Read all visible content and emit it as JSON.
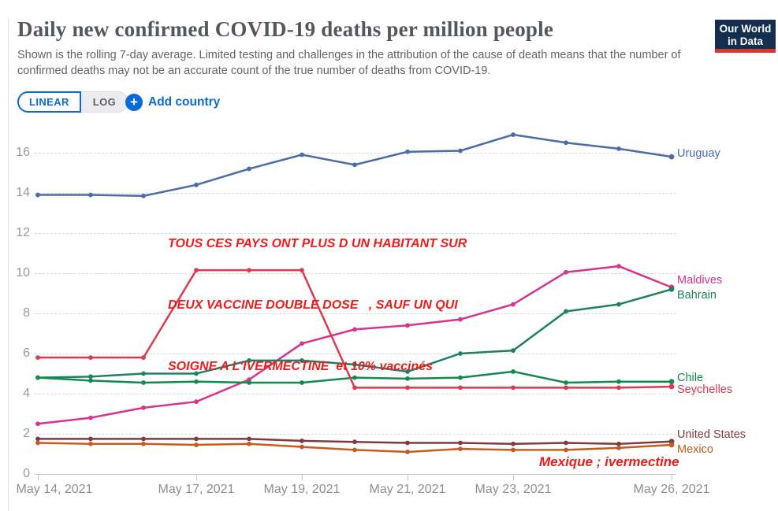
{
  "header": {
    "title": "Daily new confirmed COVID-19 deaths per million people",
    "subtitle": "Shown is the rolling 7-day average. Limited testing and challenges in the attribution of the cause of death means that the number of confirmed deaths may not be an accurate count of the true number of deaths from COVID-19.",
    "logo_line1": "Our World",
    "logo_line2": "in Data",
    "logo_bg": "#132e4f",
    "logo_bar": "#d8352e"
  },
  "controls": {
    "linear_label": "LINEAR",
    "log_label": "LOG",
    "plus_icon": "+",
    "add_country_label": "Add country",
    "accent_blue": "#0b6ad8"
  },
  "annotations": {
    "color": "#ef1c1c",
    "line1": "TOUS CES PAYS ONT PLUS D UN HABITANT SUR",
    "line2": "DEUX VACCINE DOUBLE DOSE   , SAUF UN QUI",
    "line3": "SOIGNE A L'IVERMECTINE  et 10% vaccinés",
    "mexico_note": "Mexique ; ivermectine"
  },
  "chart_data": {
    "type": "line",
    "title": "Daily new confirmed COVID-19 deaths per million people",
    "ylabel": "",
    "xlabel": "",
    "ylim": [
      0,
      17.4
    ],
    "yticks": [
      0,
      2,
      4,
      6,
      8,
      10,
      12,
      14,
      16
    ],
    "grid": "horizontal-dashed",
    "legend_position": "right-of-last-point",
    "x": [
      "May 14, 2021",
      "May 15, 2021",
      "May 16, 2021",
      "May 17, 2021",
      "May 18, 2021",
      "May 19, 2021",
      "May 20, 2021",
      "May 21, 2021",
      "May 22, 2021",
      "May 23, 2021",
      "May 24, 2021",
      "May 25, 2021",
      "May 26, 2021"
    ],
    "x_tick_labels": [
      "May 14, 2021",
      "May 17, 2021",
      "May 19, 2021",
      "May 21, 2021",
      "May 23, 2021",
      "May 26, 2021"
    ],
    "x_tick_days": [
      0,
      3,
      5,
      7,
      9,
      12
    ],
    "series": [
      {
        "name": "Uruguay",
        "color": "#4c6ba9",
        "values": [
          13.9,
          13.9,
          13.85,
          14.4,
          15.2,
          15.9,
          15.4,
          16.05,
          16.1,
          16.9,
          16.5,
          16.2,
          15.8
        ]
      },
      {
        "name": "Maldives",
        "color": "#d5348f",
        "values": [
          2.5,
          2.8,
          3.3,
          3.6,
          4.7,
          6.5,
          7.2,
          7.4,
          7.7,
          8.45,
          10.05,
          10.35,
          9.3
        ]
      },
      {
        "name": "Bahrain",
        "color": "#208065",
        "values": [
          4.8,
          4.85,
          5.0,
          5.0,
          5.65,
          5.65,
          5.45,
          5.1,
          6.0,
          6.15,
          8.1,
          8.45,
          9.2
        ]
      },
      {
        "name": "Chile",
        "color": "#148a4c",
        "values": [
          4.8,
          4.65,
          4.55,
          4.6,
          4.55,
          4.55,
          4.8,
          4.75,
          4.8,
          5.1,
          4.55,
          4.6,
          4.6
        ]
      },
      {
        "name": "Seychelles",
        "color": "#db3a51",
        "values": [
          5.8,
          5.8,
          5.8,
          10.15,
          10.15,
          10.15,
          4.3,
          4.3,
          4.3,
          4.3,
          4.3,
          4.3,
          4.35
        ]
      },
      {
        "name": "United States",
        "color": "#803b41",
        "values": [
          1.75,
          1.75,
          1.75,
          1.75,
          1.75,
          1.65,
          1.6,
          1.55,
          1.55,
          1.5,
          1.55,
          1.5,
          1.62
        ]
      },
      {
        "name": "Mexico",
        "color": "#c75a1e",
        "values": [
          1.55,
          1.5,
          1.5,
          1.45,
          1.5,
          1.35,
          1.2,
          1.1,
          1.25,
          1.2,
          1.2,
          1.3,
          1.45
        ]
      }
    ]
  }
}
